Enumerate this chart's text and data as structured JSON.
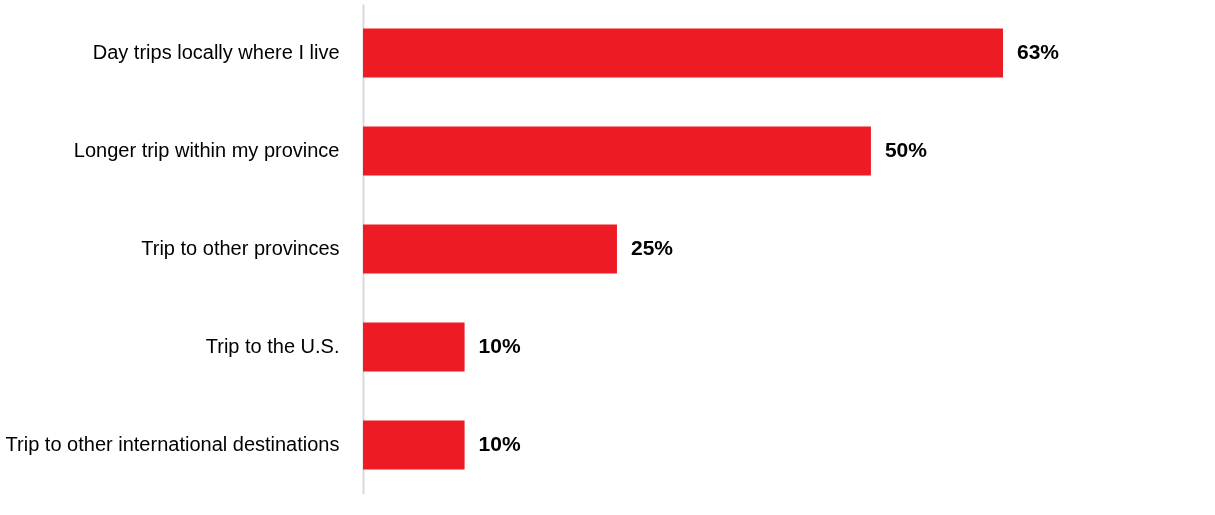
{
  "chart_data": {
    "type": "bar",
    "orientation": "horizontal",
    "categories": [
      "Day trips locally where I live",
      "Longer trip within my province",
      "Trip to other provinces",
      "Trip to the U.S.",
      "Trip to other international destinations"
    ],
    "values": [
      63,
      50,
      25,
      10,
      10
    ],
    "value_labels": [
      "63%",
      "50%",
      "25%",
      "10%",
      "10%"
    ],
    "color": "#ed1c24",
    "grid": false
  }
}
